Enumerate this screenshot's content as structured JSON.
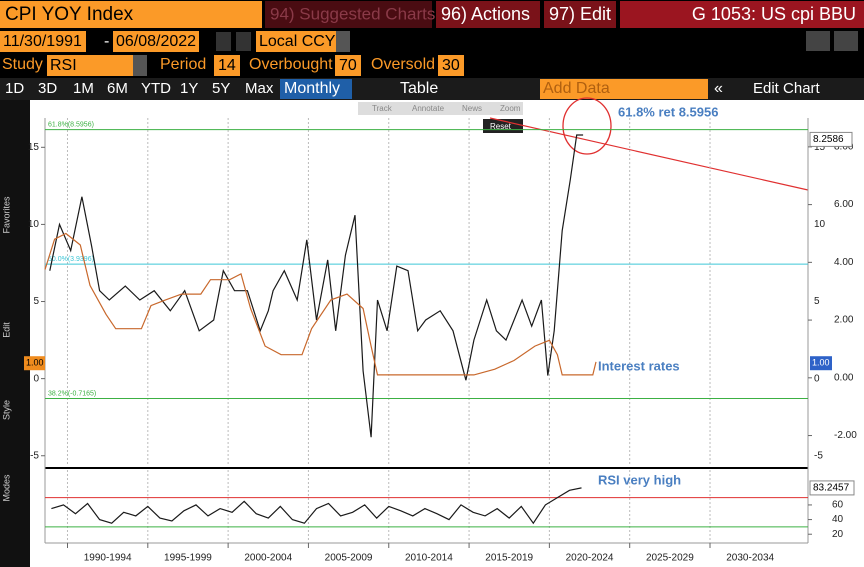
{
  "header": {
    "title": "CPI YOY Index",
    "suggested": "94) Suggested Charts",
    "actions": "96) Actions",
    "edit": "97) Edit",
    "ticker": "G 1053: US cpi BBU"
  },
  "range": {
    "start": "11/30/1991",
    "end": "06/08/2022",
    "currency": "Local CCY"
  },
  "study": {
    "label": "Study",
    "name": "RSI",
    "period_label": "Period",
    "period": 14,
    "overbought_label": "Overbought",
    "overbought": 70,
    "oversold_label": "Oversold",
    "oversold": 30
  },
  "toolbar": {
    "periods": [
      "1D",
      "3D",
      "1M",
      "6M",
      "YTD",
      "1Y",
      "5Y",
      "Max"
    ],
    "frequency": "Monthly",
    "table": "Table",
    "add_data": "Add Data",
    "edit_chart": "Edit Chart"
  },
  "chart_tools": [
    "Track",
    "Annotate",
    "News",
    "Zoom",
    "Reset"
  ],
  "sidebar": [
    "Favorites",
    "Edit",
    "Style",
    "Modes"
  ],
  "chart_data": [
    {
      "type": "line",
      "xlim": [
        1988.6,
        2036.1
      ],
      "ylim": [
        -5.6,
        16.9
      ],
      "yticks": [
        -5,
        0,
        5,
        10,
        15
      ],
      "y2lim": [
        -3.02,
        9.0
      ],
      "y2ticks": [
        {
          "value": -2,
          "label": "-2.00"
        },
        {
          "value": 0,
          "label": "0.00"
        },
        {
          "value": 2,
          "label": "2.00"
        },
        {
          "value": 4,
          "label": "4.00"
        },
        {
          "value": 6,
          "label": "6.00"
        },
        {
          "value": 8,
          "label": "8.00"
        }
      ],
      "series": [
        {
          "color": "#1a1a1a",
          "x": [
            1988.9,
            1989.5,
            1990.2,
            1990.9,
            1991.5,
            1992.0,
            1992.6,
            1993.6,
            1994.5,
            1995.4,
            1996.4,
            1997.3,
            1998.2,
            1999.1,
            1999.7,
            2000.4,
            2001.2,
            2002.0,
            2002.5,
            2002.8,
            2003.5,
            2004.3,
            2004.9,
            2005.5,
            2006.2,
            2006.7,
            2007.3,
            2007.9,
            2008.4,
            2008.9,
            2009.3,
            2009.9,
            2010.5,
            2011.2,
            2011.8,
            2012.3,
            2013.2,
            2014.0,
            2014.8,
            2015.3,
            2016.1,
            2016.7,
            2017.3,
            2018.3,
            2018.9,
            2019.5,
            2019.9,
            2020.3,
            2020.8,
            2021.3,
            2021.7,
            2022.1
          ],
          "values": [
            7.0,
            10.0,
            8.3,
            11.8,
            8.6,
            5.7,
            5.1,
            6.0,
            5.1,
            5.7,
            4.4,
            5.7,
            3.1,
            3.8,
            7.0,
            5.7,
            5.7,
            3.1,
            4.4,
            5.7,
            7.0,
            5.1,
            9.0,
            3.8,
            7.7,
            3.1,
            8.0,
            10.6,
            0.5,
            -3.8,
            5.1,
            3.1,
            7.3,
            7.0,
            3.1,
            3.8,
            4.4,
            3.1,
            -0.1,
            2.5,
            5.1,
            3.1,
            2.5,
            5.1,
            3.4,
            5.1,
            0.2,
            3.1,
            9.6,
            12.9,
            15.8,
            15.8
          ]
        },
        {
          "color": "#c8682c",
          "axis": "y2",
          "x": [
            1988.6,
            1989.2,
            1989.9,
            1990.8,
            1991.4,
            1992.4,
            1993.0,
            1994.6,
            1995.2,
            1996.1,
            1997.1,
            1998.3,
            1998.9,
            2000.1,
            2000.8,
            2001.4,
            2002.3,
            2003.3,
            2004.6,
            2005.2,
            2006.4,
            2007.4,
            2008.4,
            2008.9,
            2009.3,
            2015.3,
            2016.6,
            2017.8,
            2019.1,
            2020.0,
            2020.5,
            2020.8,
            2022.7,
            2022.9
          ],
          "values": [
            3.75,
            4.8,
            5.0,
            4.6,
            3.2,
            2.2,
            1.7,
            1.7,
            2.5,
            2.7,
            2.9,
            2.9,
            3.4,
            3.4,
            3.6,
            2.4,
            1.1,
            0.8,
            0.8,
            1.7,
            2.7,
            2.9,
            2.4,
            1.1,
            0.1,
            0.1,
            0.3,
            0.6,
            1.1,
            1.3,
            0.8,
            0.1,
            0.1,
            0.55
          ]
        }
      ],
      "levels": [
        {
          "value": 8.5956,
          "label": "61.8%(8.5956)",
          "color": "#3cb043",
          "axis": "y2"
        },
        {
          "value": 3.9396,
          "label": "50.0%(3.9396)",
          "color": "#3ec6d6",
          "axis": "y2"
        },
        {
          "value": -0.7165,
          "label": "38.2%(-0.7165)",
          "color": "#3cb043",
          "axis": "y2"
        }
      ],
      "last_value": 8.2586,
      "marker": {
        "value": 1,
        "label": "1.00"
      },
      "annotations": [
        "61.8% ret 8.5956",
        "Interest rates",
        "RSI very high"
      ]
    },
    {
      "type": "line",
      "xlim": [
        1988.6,
        2036.1
      ],
      "ylim": [
        8,
        105
      ],
      "yticks": [
        20,
        40,
        60
      ],
      "xticks": [
        {
          "value": 1990,
          "label": "1990-1994"
        },
        {
          "value": 1995,
          "label": "1995-1999"
        },
        {
          "value": 2000,
          "label": "2000-2004"
        },
        {
          "value": 2005,
          "label": "2005-2009"
        },
        {
          "value": 2010,
          "label": "2010-2014"
        },
        {
          "value": 2015,
          "label": "2015-2019"
        },
        {
          "value": 2020,
          "label": "2020-2024"
        },
        {
          "value": 2025,
          "label": "2025-2029"
        },
        {
          "value": 2030,
          "label": "2030-2034"
        }
      ],
      "series": [
        {
          "color": "#1a1a1a",
          "x": [
            1989,
            1989.75,
            1990.5,
            1991.25,
            1992,
            1992.75,
            1993.5,
            1994.25,
            1995,
            1995.75,
            1996.5,
            1997.25,
            1998,
            1998.75,
            1999.5,
            2000.25,
            2001,
            2001.75,
            2002.5,
            2003.25,
            2004,
            2004.75,
            2005.5,
            2006.25,
            2007,
            2007.75,
            2008.5,
            2009.25,
            2010,
            2010.75,
            2011.5,
            2012.25,
            2013,
            2013.75,
            2014.5,
            2015.25,
            2016,
            2016.75,
            2017.5,
            2018.25,
            2019,
            2019.75,
            2020.5,
            2021.25,
            2022
          ],
          "values": [
            55,
            60,
            48,
            62,
            40,
            35,
            50,
            45,
            58,
            42,
            38,
            52,
            60,
            45,
            55,
            50,
            65,
            48,
            42,
            58,
            40,
            35,
            55,
            62,
            45,
            50,
            60,
            42,
            58,
            52,
            45,
            55,
            48,
            40,
            60,
            50,
            45,
            55,
            42,
            58,
            35,
            60,
            70,
            80,
            83.2457
          ]
        }
      ]
    }
  ]
}
